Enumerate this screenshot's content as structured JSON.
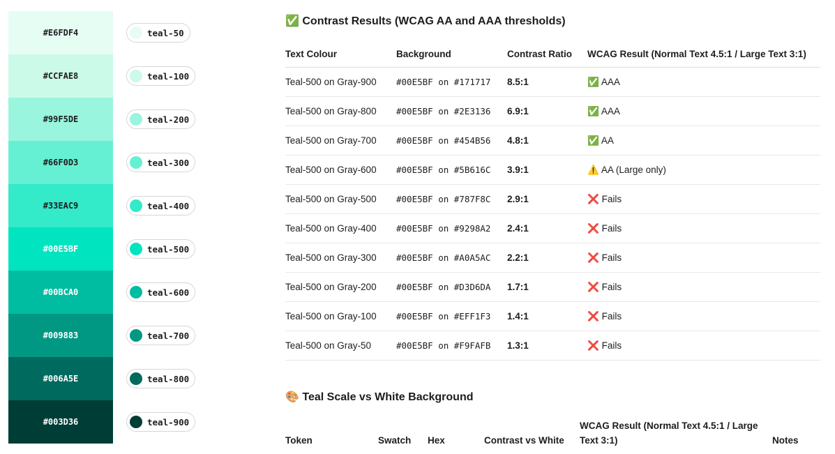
{
  "swatches": [
    {
      "hex": "#E6FDF4",
      "token": "teal-50",
      "text_color": "#1d1d1f"
    },
    {
      "hex": "#CCFAE8",
      "token": "teal-100",
      "text_color": "#1d1d1f"
    },
    {
      "hex": "#99F5DE",
      "token": "teal-200",
      "text_color": "#1d1d1f"
    },
    {
      "hex": "#66F0D3",
      "token": "teal-300",
      "text_color": "#1d1d1f"
    },
    {
      "hex": "#33EAC9",
      "token": "teal-400",
      "text_color": "#1d1d1f"
    },
    {
      "hex": "#00E5BF",
      "token": "teal-500",
      "text_color": "#ffffff"
    },
    {
      "hex": "#00BCA0",
      "token": "teal-600",
      "text_color": "#ffffff"
    },
    {
      "hex": "#009883",
      "token": "teal-700",
      "text_color": "#ffffff"
    },
    {
      "hex": "#006A5E",
      "token": "teal-800",
      "text_color": "#ffffff"
    },
    {
      "hex": "#003D36",
      "token": "teal-900",
      "text_color": "#ffffff"
    }
  ],
  "contrast": {
    "icon": "✅",
    "title": "Contrast Results (WCAG AA and AAA thresholds)",
    "headers": [
      "Text Colour",
      "Background",
      "Contrast Ratio",
      "WCAG Result (Normal Text 4.5:1 / Large Text 3:1)"
    ],
    "rows": [
      {
        "text": "Teal-500 on Gray-900",
        "bg": "#00E5BF on #171717",
        "ratio": "8.5:1",
        "icon": "✅",
        "result": "AAA"
      },
      {
        "text": "Teal-500 on Gray-800",
        "bg": "#00E5BF on #2E3136",
        "ratio": "6.9:1",
        "icon": "✅",
        "result": "AAA"
      },
      {
        "text": "Teal-500 on Gray-700",
        "bg": "#00E5BF on #454B56",
        "ratio": "4.8:1",
        "icon": "✅",
        "result": "AA"
      },
      {
        "text": "Teal-500 on Gray-600",
        "bg": "#00E5BF on #5B616C",
        "ratio": "3.9:1",
        "icon": "⚠️",
        "result": "AA (Large only)"
      },
      {
        "text": "Teal-500 on Gray-500",
        "bg": "#00E5BF on #787F8C",
        "ratio": "2.9:1",
        "icon": "❌",
        "result": "Fails"
      },
      {
        "text": "Teal-500 on Gray-400",
        "bg": "#00E5BF on #9298A2",
        "ratio": "2.4:1",
        "icon": "❌",
        "result": "Fails"
      },
      {
        "text": "Teal-500 on Gray-300",
        "bg": "#00E5BF on #A0A5AC",
        "ratio": "2.2:1",
        "icon": "❌",
        "result": "Fails"
      },
      {
        "text": "Teal-500 on Gray-200",
        "bg": "#00E5BF on #D3D6DA",
        "ratio": "1.7:1",
        "icon": "❌",
        "result": "Fails"
      },
      {
        "text": "Teal-500 on Gray-100",
        "bg": "#00E5BF on #EFF1F3",
        "ratio": "1.4:1",
        "icon": "❌",
        "result": "Fails"
      },
      {
        "text": "Teal-500 on Gray-50",
        "bg": "#00E5BF on #F9FAFB",
        "ratio": "1.3:1",
        "icon": "❌",
        "result": "Fails"
      }
    ]
  },
  "white_scale": {
    "icon": "🎨",
    "title": "Teal Scale vs White Background",
    "headers": [
      "Token",
      "Swatch",
      "Hex",
      "Contrast vs White",
      "WCAG Result (Normal Text 4.5:1 / Large Text 3:1)",
      "Notes"
    ]
  }
}
